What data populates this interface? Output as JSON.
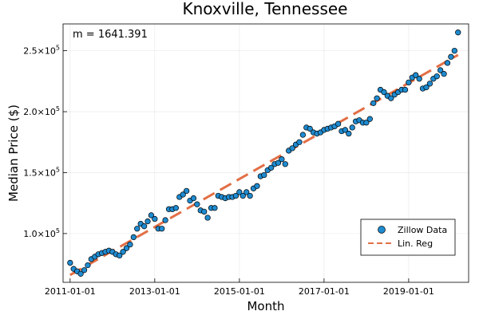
{
  "chart_data": {
    "type": "scatter",
    "title": "Knoxville, Tennessee",
    "xlabel": "Month",
    "ylabel": "Median Price ($)",
    "annotation": "m = 1641.391",
    "x_start": "2011-01-01",
    "x_ticks": [
      "2011-01-01",
      "2013-01-01",
      "2015-01-01",
      "2017-01-01",
      "2019-01-01"
    ],
    "y_ticks": [
      {
        "value": 100000,
        "mantissa": "1.0×10",
        "exponent": "5"
      },
      {
        "value": 150000,
        "mantissa": "1.5×10",
        "exponent": "5"
      },
      {
        "value": 200000,
        "mantissa": "2.0×10",
        "exponent": "5"
      },
      {
        "value": 250000,
        "mantissa": "2.5×10",
        "exponent": "5"
      }
    ],
    "xlim": [
      "2010-11-01",
      "2020-06-01"
    ],
    "ylim": [
      60000,
      272000
    ],
    "grid": true,
    "legend_position": "bottom-right",
    "series": [
      {
        "name": "Zillow Data",
        "kind": "scatter",
        "color": "#1f8bd0",
        "start": "2011-01-01",
        "step": "monthly",
        "values": [
          76000,
          71000,
          69000,
          67000,
          70000,
          74000,
          79000,
          81000,
          83000,
          84000,
          85000,
          86000,
          85000,
          83000,
          82000,
          85000,
          88000,
          91000,
          97000,
          104000,
          108000,
          106000,
          110000,
          115000,
          112000,
          104000,
          104000,
          111000,
          120000,
          120000,
          121000,
          130000,
          132000,
          135000,
          127000,
          129000,
          124000,
          119000,
          118000,
          113000,
          121000,
          121000,
          131000,
          130000,
          129000,
          130000,
          130000,
          131000,
          134000,
          131000,
          134000,
          131000,
          137000,
          139000,
          147000,
          148000,
          152000,
          154000,
          157000,
          158000,
          161000,
          157000,
          168000,
          170000,
          173000,
          175000,
          181000,
          187000,
          186000,
          183000,
          182000,
          183000,
          185000,
          186000,
          187000,
          188000,
          190000,
          184000,
          185000,
          182000,
          187000,
          192000,
          193000,
          191000,
          191000,
          194000,
          207000,
          211000,
          218000,
          216000,
          213000,
          211000,
          214000,
          216000,
          218000,
          218000,
          224000,
          228000,
          230000,
          227000,
          219000,
          220000,
          223000,
          227000,
          229000,
          234000,
          231000,
          240000,
          245000,
          250000,
          265000
        ]
      },
      {
        "name": "Lin. Reg",
        "kind": "line",
        "color": "#e26f46",
        "start_value": 66000,
        "slope_per_month": 1641.391,
        "months": 110
      }
    ]
  }
}
